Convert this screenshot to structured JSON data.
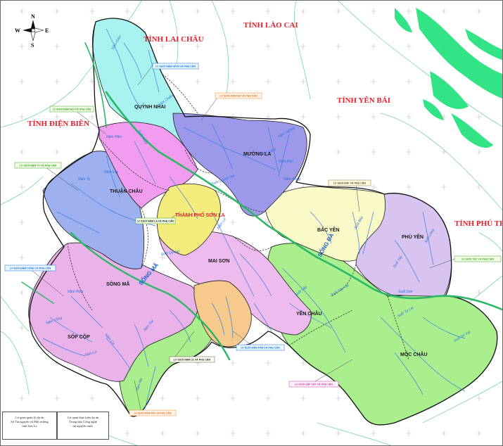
{
  "provinces": [
    "TỈNH LÀO CAI",
    "TỈNH LAI CHÂU",
    "TỈNH YÊN BÁI",
    "TỈNH ĐIỆN BIÊN",
    "TỈNH PHÚ THỌ"
  ],
  "districts": [
    "QUỲNH NHAI",
    "MƯỜNG LA",
    "THUẬN CHÂU",
    "BẮC YÊN",
    "PHÙ YÊN",
    "MAI SƠN",
    "SÔNG MÃ",
    "YÊN CHÂU",
    "SỐP CỘP",
    "MỘC CHÂU"
  ],
  "city": "THÀNH PHỐ SƠN LA",
  "major_rivers": [
    "SÔNG ĐÀ",
    "SÔNG MÃ"
  ],
  "callouts": [
    "LV SUỐI NẬM GIÔN VÀ PHỤ CẬN",
    "LV SUỐI NẬM MU VÀ PHỤ CẬN",
    "LV SUỐI NẬM MỘI VÀ PHỤ CẬN",
    "LV SUỐI NẬM TY VÀ PHỤ CẬN",
    "LV SUỐI BẮP VÀ PHỤ CẬN",
    "LV SUỐI NẬM LA VÀ PHỤ CẬN",
    "LV SUỐI NẬM CÔNG VÀ PHỤ CẬN",
    "LV SUỐI TẤC VÀ PHỤ CẬN",
    "LV SUỐI NẬM LÉ VÀ PHỤ CẬN",
    "LV SUỐI NẬM PÁN VÀ PHỤ CẬN",
    "LV SUỐI SẬP VẠT VÀ PHỤ CẬN",
    "LV SUỐI NẬM MA VÀ PHỤ CẬN"
  ],
  "streams": [
    "Nậm Giôn",
    "Nậm Chiến",
    "Suối Muội",
    "Nậm Păm",
    "Nậm Ty",
    "Nậm Lay",
    "Suối Quỳnh Vai",
    "Nậm Công",
    "Nậm Ca",
    "Suối Sập",
    "Suối Tấc",
    "Suối Tà Lai",
    "Suối Sập Vạt",
    "Suối Sò Vạt",
    "Nậm Sọi",
    "Suối Lông",
    "Suối Quang",
    "Nậm La",
    "Nậm Ma",
    "Nậm Lạnh",
    "Nậm Pàn",
    "Suối Sơn",
    "Nậm Ngòng",
    "Nậm Hồng",
    "Nậm Lừ",
    "Nậm Púm",
    "Suối Bắp"
  ],
  "compass": {
    "north": "N",
    "south": "S",
    "east": "E",
    "west": "W"
  },
  "footer": {
    "left": [
      "Cơ quan quản lý dự án",
      "Sở Tài nguyên và Môi trường",
      "tỉnh Sơn La"
    ],
    "right": [
      "Cơ quan thực hiện dự án",
      "Trung tâm Công nghệ",
      "tài nguyên nước"
    ]
  },
  "colors": {
    "quynh_nhai": "#a8f2f0",
    "muong_la": "#9c99ea",
    "thuan_chau_west": "#9eb0f0",
    "thuan_chau_core": "#f29cf0",
    "city": "#f4ec7d",
    "mai_son": "#eebbee",
    "bac_yen": "#fafac8",
    "phu_yen": "#d9c3f0",
    "moc_chau": "#a9ef8e",
    "song_ma_basin": "#e9b3ea",
    "nam_le": "#f6ca8d",
    "river_main": "#2ab866",
    "stream": "#3a7fe0",
    "province_label": "#e8202a"
  }
}
